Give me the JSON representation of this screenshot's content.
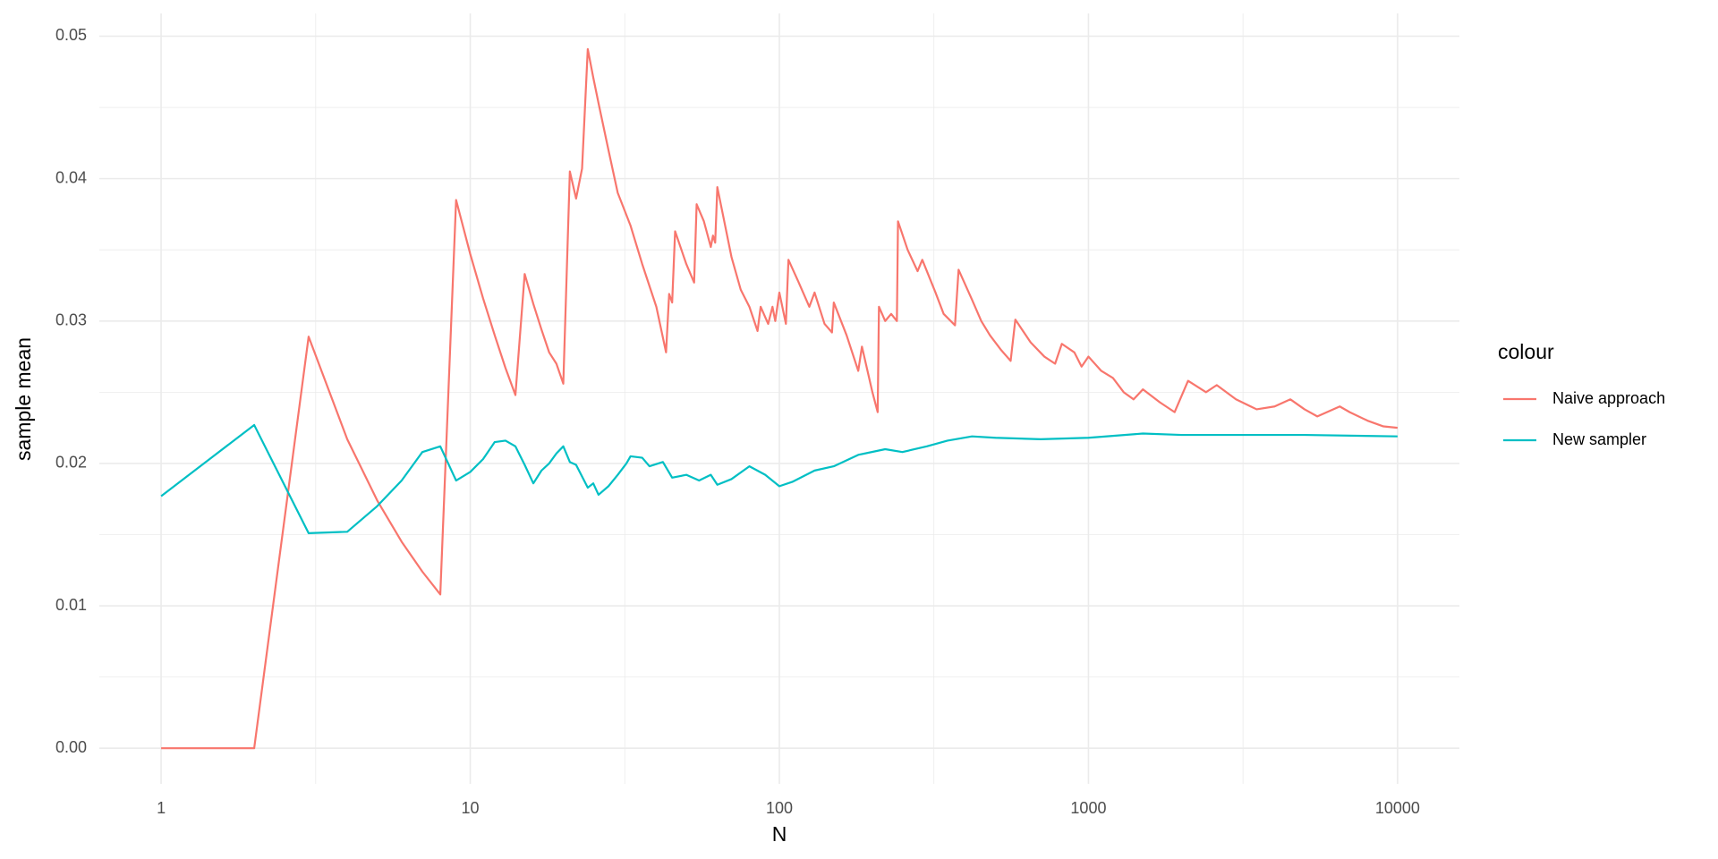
{
  "chart_data": {
    "type": "line",
    "x_label": "N",
    "y_label": "sample mean",
    "legend_title": "colour",
    "legend_position": "right",
    "x_log_scale": true,
    "grid": true,
    "xlim": [
      0.631,
      15849
    ],
    "xticks": [
      1,
      10,
      100,
      1000,
      10000
    ],
    "x_minor_ticks": [
      3.162,
      31.62,
      316.2,
      3162
    ],
    "ylim": [
      -0.0025,
      0.0516
    ],
    "yticks": [
      {
        "value": 0,
        "label": "0.00"
      },
      0.01,
      0.02,
      0.03,
      0.04,
      0.05
    ],
    "y_minor_ticks": [
      0.005,
      0.015,
      0.025,
      0.035,
      0.045
    ],
    "series": [
      {
        "name": "Naive approach",
        "color": "#F8766D",
        "x": [
          1,
          2,
          3,
          4,
          5,
          6,
          7,
          8,
          9,
          10,
          11,
          12,
          13,
          14,
          15,
          16,
          17,
          18,
          19,
          20,
          21,
          22,
          23,
          24,
          25,
          26,
          28,
          30,
          33,
          36,
          40,
          43,
          44,
          45,
          46,
          50,
          53,
          54,
          57,
          60,
          61,
          62,
          63,
          70,
          75,
          80,
          85,
          87,
          92,
          95,
          97,
          100,
          105,
          107,
          115,
          125,
          130,
          140,
          148,
          150,
          165,
          180,
          185,
          200,
          208,
          210,
          220,
          230,
          240,
          242,
          260,
          280,
          290,
          320,
          340,
          370,
          380,
          420,
          450,
          480,
          520,
          560,
          580,
          650,
          720,
          780,
          820,
          900,
          950,
          1000,
          1100,
          1200,
          1300,
          1400,
          1500,
          1700,
          1900,
          2100,
          2400,
          2600,
          3000,
          3500,
          4000,
          4500,
          5000,
          5500,
          6500,
          7000,
          8000,
          9000,
          10000
        ],
        "values": [
          0,
          0,
          0.0289,
          0.0217,
          0.0174,
          0.0145,
          0.0124,
          0.0108,
          0.0385,
          0.0347,
          0.0316,
          0.029,
          0.0267,
          0.0248,
          0.0333,
          0.0312,
          0.0294,
          0.0278,
          0.027,
          0.0256,
          0.0405,
          0.0386,
          0.0407,
          0.0491,
          0.0471,
          0.0453,
          0.042,
          0.039,
          0.0367,
          0.034,
          0.031,
          0.0278,
          0.0319,
          0.0313,
          0.0363,
          0.034,
          0.0327,
          0.0382,
          0.037,
          0.0352,
          0.036,
          0.0355,
          0.0394,
          0.0345,
          0.0322,
          0.031,
          0.0293,
          0.031,
          0.0298,
          0.031,
          0.03,
          0.032,
          0.0298,
          0.0343,
          0.0328,
          0.031,
          0.032,
          0.0298,
          0.0292,
          0.0313,
          0.029,
          0.0265,
          0.0282,
          0.025,
          0.0236,
          0.031,
          0.03,
          0.0305,
          0.03,
          0.037,
          0.035,
          0.0335,
          0.0343,
          0.032,
          0.0305,
          0.0297,
          0.0336,
          0.0315,
          0.03,
          0.029,
          0.028,
          0.0272,
          0.0301,
          0.0285,
          0.0275,
          0.027,
          0.0284,
          0.0278,
          0.0268,
          0.0275,
          0.0265,
          0.026,
          0.025,
          0.0245,
          0.0252,
          0.0243,
          0.0236,
          0.0258,
          0.025,
          0.0255,
          0.0245,
          0.0238,
          0.024,
          0.0245,
          0.0238,
          0.0233,
          0.024,
          0.0236,
          0.023,
          0.0226,
          0.0225
        ]
      },
      {
        "name": "New sampler",
        "color": "#00BFC4",
        "x": [
          1,
          2,
          3,
          4,
          5,
          6,
          7,
          8,
          9,
          10,
          11,
          12,
          13,
          14,
          15,
          16,
          17,
          18,
          19,
          20,
          21,
          22,
          24,
          25,
          26,
          28,
          30,
          32,
          33,
          36,
          38,
          42,
          45,
          50,
          55,
          60,
          63,
          70,
          80,
          90,
          100,
          110,
          130,
          150,
          180,
          220,
          250,
          300,
          350,
          420,
          500,
          700,
          1000,
          1500,
          2000,
          3000,
          5000,
          10000
        ],
        "values": [
          0.0177,
          0.0227,
          0.0151,
          0.0152,
          0.017,
          0.0188,
          0.0208,
          0.0212,
          0.0188,
          0.0194,
          0.0203,
          0.0215,
          0.0216,
          0.0212,
          0.0199,
          0.0186,
          0.0195,
          0.02,
          0.0207,
          0.0212,
          0.0201,
          0.0199,
          0.0183,
          0.0186,
          0.0178,
          0.0184,
          0.0192,
          0.02,
          0.0205,
          0.0204,
          0.0198,
          0.0201,
          0.019,
          0.0192,
          0.0188,
          0.0192,
          0.0185,
          0.0189,
          0.0198,
          0.0192,
          0.0184,
          0.0187,
          0.0195,
          0.0198,
          0.0206,
          0.021,
          0.0208,
          0.0212,
          0.0216,
          0.0219,
          0.0218,
          0.0217,
          0.0218,
          0.0221,
          0.022,
          0.022,
          0.022,
          0.0219
        ]
      }
    ]
  }
}
